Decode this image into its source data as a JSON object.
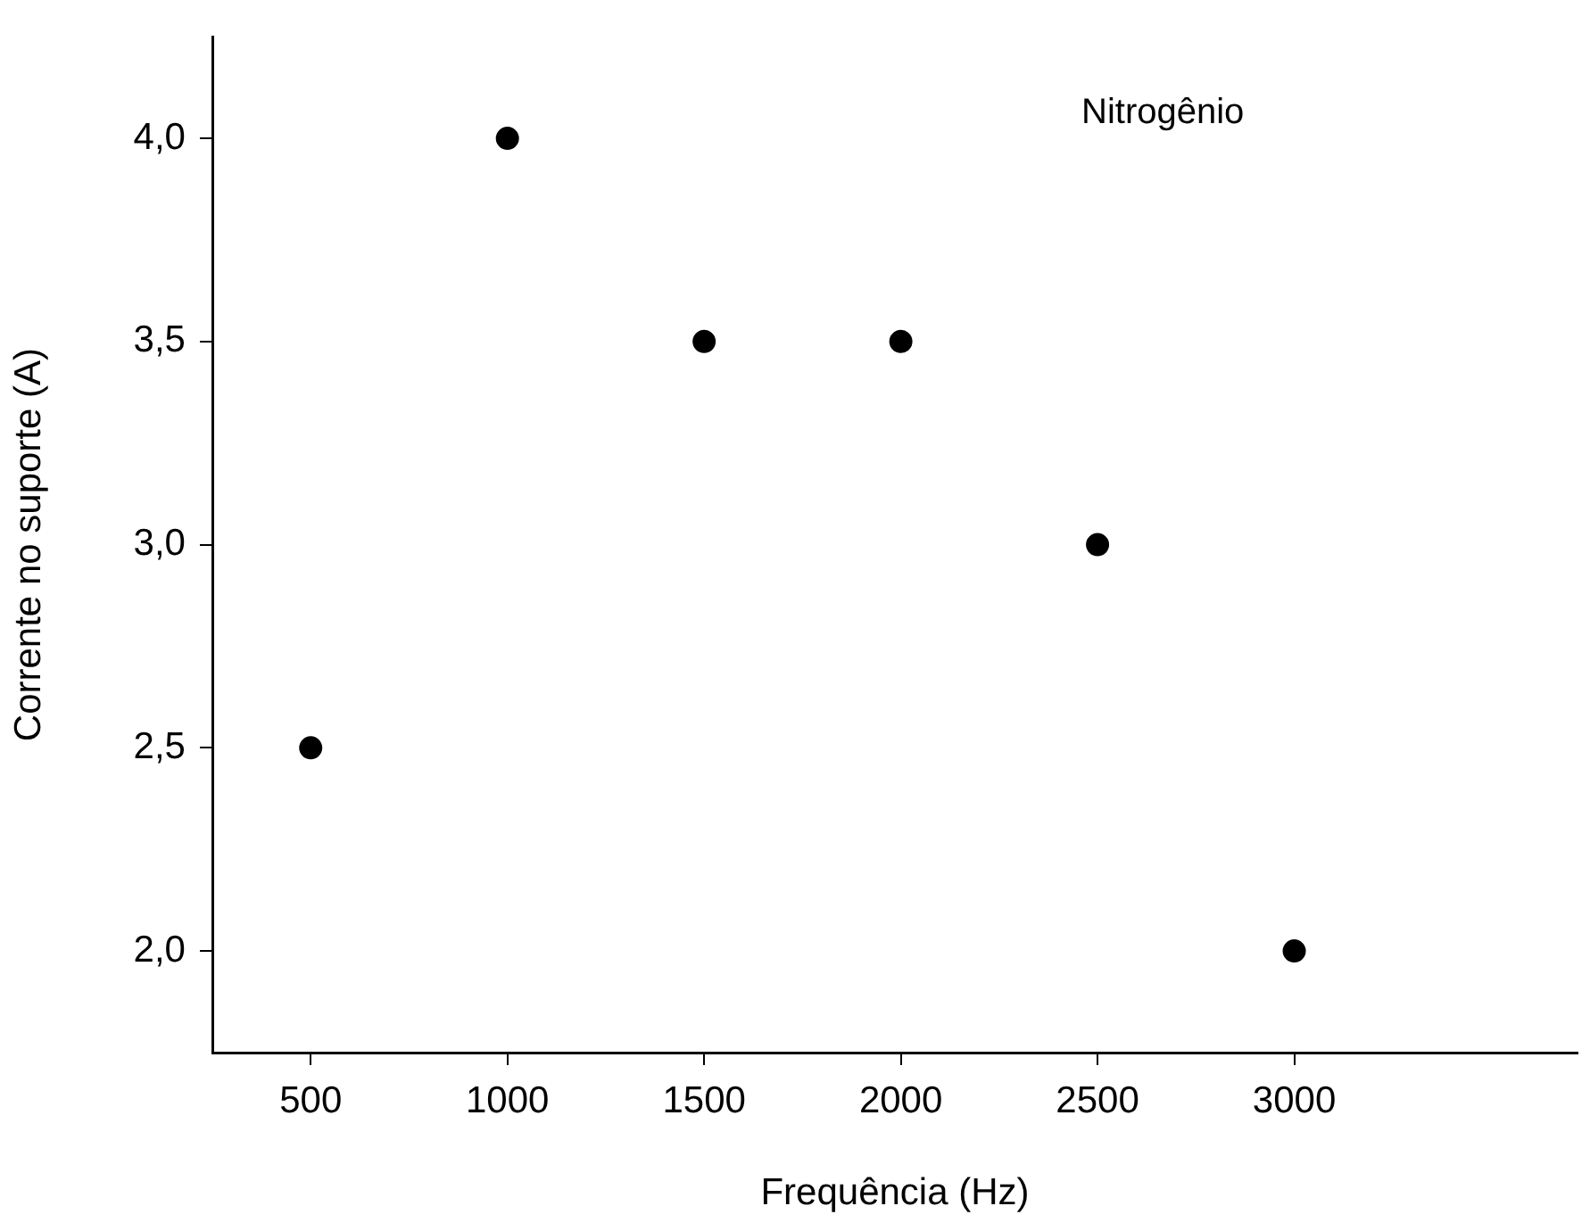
{
  "chart_data": {
    "type": "scatter",
    "xlabel": "Frequência (Hz)",
    "ylabel": "Corrente no suporte (A)",
    "x": [
      500,
      1000,
      1500,
      2000,
      2500,
      3000
    ],
    "series": [
      {
        "color": "#000000",
        "values": [
          2.5,
          4.0,
          3.5,
          3.5,
          3.0,
          2.0
        ]
      }
    ],
    "xlim": [
      250,
      3720
    ],
    "xticks": [
      500,
      1000,
      1500,
      2000,
      2500,
      3000
    ],
    "ylim": [
      1.75,
      4.25
    ],
    "yticks": [
      {
        "value": 2,
        "label": "2,0"
      },
      {
        "value": 2.5,
        "label": "2,5"
      },
      {
        "value": 3,
        "label": "3,0"
      },
      {
        "value": 3.5,
        "label": "3,5"
      },
      {
        "value": 4,
        "label": "4,0"
      }
    ],
    "annotations": [
      "Nitrogênio"
    ],
    "grid": false,
    "legend": false,
    "marker": "circle"
  }
}
